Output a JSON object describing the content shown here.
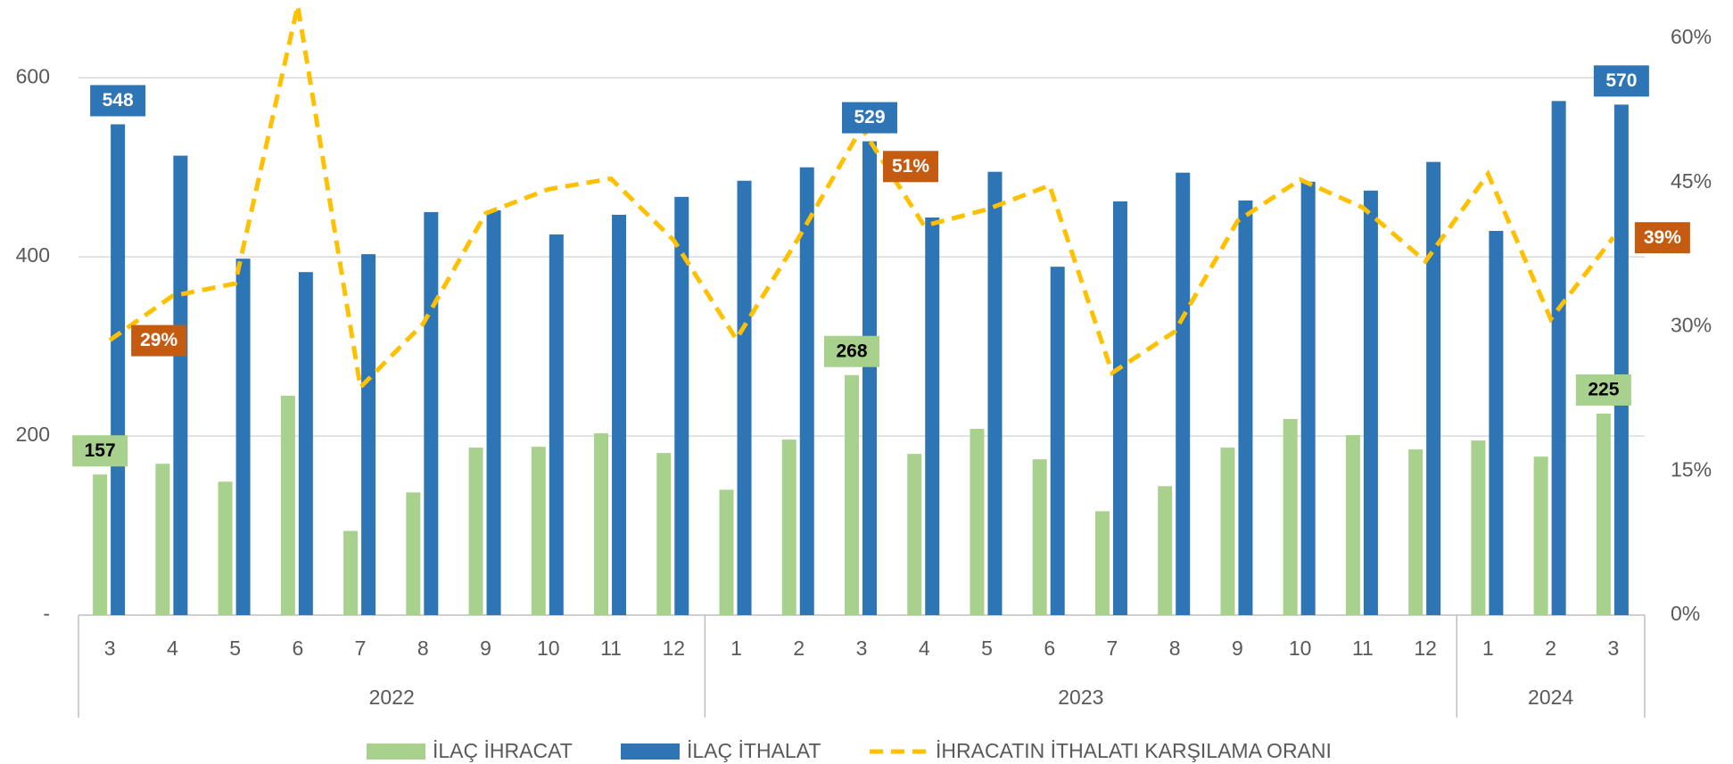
{
  "chart_data": {
    "type": "bar_line",
    "categories": [
      "3",
      "4",
      "5",
      "6",
      "7",
      "8",
      "9",
      "10",
      "11",
      "12",
      "1",
      "2",
      "3",
      "4",
      "5",
      "6",
      "7",
      "8",
      "9",
      "10",
      "11",
      "12",
      "1",
      "2",
      "3"
    ],
    "groups": [
      {
        "label": "2022",
        "count": 10
      },
      {
        "label": "2023",
        "count": 12
      },
      {
        "label": "2024",
        "count": 3
      }
    ],
    "series": [
      {
        "name": "İLAÇ İHRACAT",
        "color": "#a9d18e",
        "label_color": "#000000",
        "values": [
          157,
          169,
          149,
          245,
          94,
          137,
          187,
          188,
          203,
          181,
          140,
          196,
          268,
          180,
          208,
          174,
          116,
          144,
          187,
          219,
          201,
          185,
          195,
          177,
          225
        ],
        "value_labels": [
          "157",
          null,
          null,
          null,
          null,
          null,
          null,
          null,
          null,
          null,
          null,
          null,
          "268",
          null,
          null,
          null,
          null,
          null,
          null,
          null,
          null,
          null,
          null,
          null,
          "225"
        ]
      },
      {
        "name": "İLAÇ İTHALAT",
        "color": "#2e75b6",
        "label_color": "#ffffff",
        "values": [
          548,
          513,
          398,
          383,
          403,
          450,
          452,
          425,
          447,
          467,
          485,
          500,
          529,
          444,
          495,
          389,
          462,
          494,
          463,
          484,
          474,
          506,
          429,
          574,
          570
        ],
        "value_labels": [
          "548",
          null,
          null,
          null,
          null,
          null,
          null,
          null,
          null,
          null,
          null,
          null,
          "529",
          null,
          null,
          null,
          null,
          null,
          null,
          null,
          null,
          null,
          null,
          null,
          "570"
        ]
      },
      {
        "name": "İHRACATIN İTHALATI KARŞILAMA ORANI",
        "color": "#ffc000",
        "axis": "y2",
        "dashed": true,
        "label_bg": "#c55a11",
        "label_color": "#ffffff",
        "values": [
          28.6,
          33.2,
          34.5,
          63.4,
          23.7,
          30.3,
          41.8,
          44.3,
          45.4,
          39.0,
          28.7,
          39.3,
          50.7,
          40.5,
          42.2,
          44.7,
          25.2,
          29.5,
          41.0,
          45.3,
          42.4,
          36.8,
          45.9,
          30.8,
          39.3
        ],
        "value_labels": [
          "29%",
          null,
          null,
          null,
          null,
          null,
          null,
          null,
          null,
          null,
          null,
          null,
          "51%",
          null,
          null,
          null,
          null,
          null,
          null,
          null,
          null,
          null,
          null,
          null,
          "39%"
        ]
      }
    ],
    "ylim": [
      0,
      644
    ],
    "yticks": [
      {
        "value": 0,
        "label": "-"
      },
      200,
      400,
      600
    ],
    "y2lim": [
      0,
      60
    ],
    "y2ticks": [
      {
        "value": 0,
        "label": "0%"
      },
      {
        "value": 15,
        "label": "15%"
      },
      {
        "value": 30,
        "label": "30%"
      },
      {
        "value": 45,
        "label": "45%"
      },
      {
        "value": 60,
        "label": "60%"
      }
    ],
    "grid": true,
    "legend": "bottom"
  }
}
